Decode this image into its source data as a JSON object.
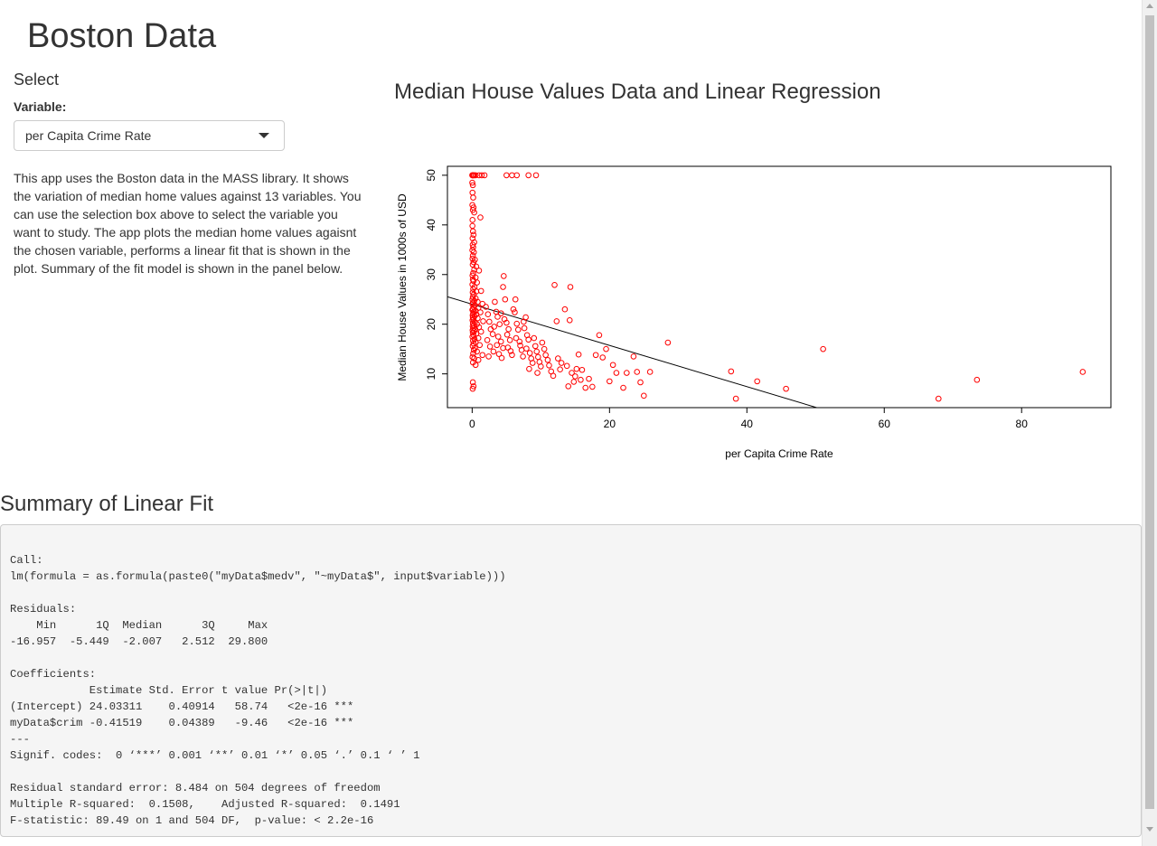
{
  "app": {
    "title": "Boston Data"
  },
  "sidebar": {
    "heading": "Select",
    "select_label": "Variable:",
    "select_value": "per Capita Crime Rate",
    "description": "This app uses the Boston data in the MASS library. It shows the variation of median home values against 13 variables. You can use the selection box above to select the variable you want to study. The app plots the median home values agaisnt the chosen variable, performs a linear fit that is shown in the plot. Summary of the fit model is shown in the panel below."
  },
  "main": {
    "plot_title": "Median House Values Data and Linear Regression"
  },
  "chart_data": {
    "type": "scatter",
    "xlabel": "per Capita Crime Rate",
    "ylabel": "Median House Values in 1000s of USD",
    "xlim": [
      -3.6,
      93
    ],
    "ylim": [
      3.2,
      51.8
    ],
    "xticks": [
      0,
      20,
      40,
      60,
      80
    ],
    "yticks": [
      10,
      20,
      30,
      40,
      50
    ],
    "point_color": "#ff0000",
    "line_color": "#000000",
    "grid": false,
    "regression": {
      "intercept": 24.03311,
      "slope": -0.41519
    },
    "points": [
      [
        0.01,
        50
      ],
      [
        0.05,
        50
      ],
      [
        0.1,
        50
      ],
      [
        0.2,
        50
      ],
      [
        0.3,
        50
      ],
      [
        0.5,
        50
      ],
      [
        1.0,
        50
      ],
      [
        1.4,
        50
      ],
      [
        1.8,
        50
      ],
      [
        5.0,
        50
      ],
      [
        5.8,
        50
      ],
      [
        6.5,
        50
      ],
      [
        8.2,
        50
      ],
      [
        9.3,
        50
      ],
      [
        0.02,
        48.5
      ],
      [
        0.1,
        48
      ],
      [
        0.05,
        46.5
      ],
      [
        0.15,
        45.5
      ],
      [
        0.03,
        44
      ],
      [
        0.2,
        43.5
      ],
      [
        0.1,
        43
      ],
      [
        0.3,
        42.5
      ],
      [
        1.2,
        41.5
      ],
      [
        0.05,
        41
      ],
      [
        0.04,
        39.8
      ],
      [
        0.12,
        38.7
      ],
      [
        0.2,
        38
      ],
      [
        0.06,
        37.3
      ],
      [
        0.3,
        36.5
      ],
      [
        0.08,
        36
      ],
      [
        0.15,
        35.5
      ],
      [
        0.03,
        34.9
      ],
      [
        0.25,
        34.5
      ],
      [
        0.1,
        33.8
      ],
      [
        0.05,
        33.2
      ],
      [
        0.4,
        33
      ],
      [
        0.2,
        32.5
      ],
      [
        0.08,
        32
      ],
      [
        0.6,
        31.6
      ],
      [
        0.3,
        31
      ],
      [
        1.0,
        30.8
      ],
      [
        0.15,
        30.3
      ],
      [
        0.05,
        29.8
      ],
      [
        0.5,
        29.4
      ],
      [
        0.1,
        29
      ],
      [
        0.2,
        28.7
      ],
      [
        0.7,
        28.4
      ],
      [
        0.04,
        28
      ],
      [
        0.35,
        27.5
      ],
      [
        0.15,
        27.1
      ],
      [
        0.6,
        26.6
      ],
      [
        0.08,
        26.4
      ],
      [
        1.3,
        26.7
      ],
      [
        0.25,
        26
      ],
      [
        0.1,
        25.5
      ],
      [
        0.5,
        25.2
      ],
      [
        0.04,
        25
      ],
      [
        0.3,
        24.7
      ],
      [
        0.8,
        24.5
      ],
      [
        0.12,
        24.3
      ],
      [
        1.5,
        24.1
      ],
      [
        0.06,
        24
      ],
      [
        0.4,
        23.8
      ],
      [
        0.2,
        23.5
      ],
      [
        0.9,
        23.3
      ],
      [
        0.1,
        23.1
      ],
      [
        0.03,
        22.9
      ],
      [
        0.5,
        22.7
      ],
      [
        0.25,
        22.5
      ],
      [
        1.2,
        22.4
      ],
      [
        0.15,
        22.2
      ],
      [
        0.6,
        22
      ],
      [
        0.07,
        21.8
      ],
      [
        0.35,
        21.6
      ],
      [
        0.1,
        21.4
      ],
      [
        0.8,
        21.2
      ],
      [
        0.2,
        21
      ],
      [
        0.05,
        20.8
      ],
      [
        1.6,
        20.6
      ],
      [
        0.4,
        20.4
      ],
      [
        0.12,
        20.2
      ],
      [
        0.7,
        20
      ],
      [
        0.25,
        19.8
      ],
      [
        0.08,
        19.6
      ],
      [
        1.0,
        19.4
      ],
      [
        0.15,
        19.2
      ],
      [
        0.45,
        19
      ],
      [
        0.06,
        18.8
      ],
      [
        0.3,
        18.6
      ],
      [
        1.3,
        18.5
      ],
      [
        0.1,
        18.3
      ],
      [
        0.6,
        18.1
      ],
      [
        0.2,
        17.8
      ],
      [
        0.04,
        17.5
      ],
      [
        0.9,
        17.2
      ],
      [
        0.35,
        17
      ],
      [
        0.12,
        16.7
      ],
      [
        0.5,
        16.4
      ],
      [
        0.2,
        16.1
      ],
      [
        1.1,
        15.8
      ],
      [
        0.08,
        15.6
      ],
      [
        0.4,
        15.2
      ],
      [
        0.25,
        14.8
      ],
      [
        0.7,
        14.5
      ],
      [
        0.15,
        14.1
      ],
      [
        1.5,
        13.8
      ],
      [
        0.05,
        13.4
      ],
      [
        0.3,
        13.1
      ],
      [
        0.9,
        12.8
      ],
      [
        0.12,
        12.3
      ],
      [
        0.5,
        11.8
      ],
      [
        0.1,
        8.3
      ],
      [
        0.2,
        7.5
      ],
      [
        0.08,
        7.0
      ],
      [
        2.0,
        23.5
      ],
      [
        2.3,
        22
      ],
      [
        2.5,
        20.5
      ],
      [
        2.7,
        19
      ],
      [
        3.0,
        18
      ],
      [
        2.2,
        16.8
      ],
      [
        2.6,
        15.5
      ],
      [
        3.1,
        14.5
      ],
      [
        2.4,
        13.5
      ],
      [
        3.3,
        24.5
      ],
      [
        3.5,
        22.5
      ],
      [
        3.7,
        21.5
      ],
      [
        4.0,
        20
      ],
      [
        3.2,
        19.5
      ],
      [
        3.8,
        17.5
      ],
      [
        4.2,
        16.5
      ],
      [
        3.6,
        15.8
      ],
      [
        4.5,
        15.2
      ],
      [
        3.9,
        14
      ],
      [
        4.3,
        13.2
      ],
      [
        4.6,
        29.7
      ],
      [
        4.5,
        27.5
      ],
      [
        4.8,
        25
      ],
      [
        4.2,
        22.2
      ],
      [
        4.7,
        21
      ],
      [
        5.0,
        20.3
      ],
      [
        5.3,
        19
      ],
      [
        5.1,
        17.9
      ],
      [
        5.5,
        16.8
      ],
      [
        5.2,
        15.3
      ],
      [
        5.6,
        14.6
      ],
      [
        5.8,
        13.8
      ],
      [
        6.0,
        23
      ],
      [
        6.2,
        22.4
      ],
      [
        6.3,
        25
      ],
      [
        6.5,
        20.1
      ],
      [
        6.7,
        18.9
      ],
      [
        6.4,
        17.2
      ],
      [
        6.9,
        16.5
      ],
      [
        7.0,
        15.7
      ],
      [
        7.2,
        14.8
      ],
      [
        7.4,
        13.5
      ],
      [
        7.5,
        20.5
      ],
      [
        7.8,
        21.4
      ],
      [
        7.6,
        19.2
      ],
      [
        8.0,
        17.8
      ],
      [
        8.2,
        16.9
      ],
      [
        7.9,
        15.1
      ],
      [
        8.4,
        14.2
      ],
      [
        8.6,
        13.1
      ],
      [
        8.8,
        12.2
      ],
      [
        8.3,
        11
      ],
      [
        9.0,
        17.2
      ],
      [
        9.2,
        15.6
      ],
      [
        9.4,
        14.5
      ],
      [
        9.6,
        13.4
      ],
      [
        9.8,
        12.4
      ],
      [
        10.0,
        11.5
      ],
      [
        9.5,
        10.2
      ],
      [
        10.2,
        16.3
      ],
      [
        10.5,
        15
      ],
      [
        10.7,
        13.8
      ],
      [
        11.0,
        12.8
      ],
      [
        11.2,
        11.7
      ],
      [
        11.5,
        10.5
      ],
      [
        11.8,
        9.6
      ],
      [
        12.0,
        27.9
      ],
      [
        12.3,
        20.6
      ],
      [
        12.5,
        13.1
      ],
      [
        12.8,
        10.9
      ],
      [
        13.0,
        12.2
      ],
      [
        13.5,
        23
      ],
      [
        13.8,
        11.6
      ],
      [
        14.0,
        7.5
      ],
      [
        14.2,
        20.8
      ],
      [
        14.3,
        27.5
      ],
      [
        14.5,
        10.2
      ],
      [
        14.8,
        8.4
      ],
      [
        15.0,
        9.5
      ],
      [
        15.2,
        11
      ],
      [
        15.5,
        13.9
      ],
      [
        15.8,
        8.8
      ],
      [
        16.0,
        10.8
      ],
      [
        16.5,
        7.2
      ],
      [
        17.0,
        9
      ],
      [
        17.5,
        7.4
      ],
      [
        18.0,
        13.8
      ],
      [
        18.5,
        17.8
      ],
      [
        19.0,
        13.3
      ],
      [
        19.5,
        15
      ],
      [
        20.0,
        8.5
      ],
      [
        20.5,
        11.8
      ],
      [
        21.0,
        10.2
      ],
      [
        22.0,
        7.2
      ],
      [
        22.5,
        10.2
      ],
      [
        23.5,
        13.5
      ],
      [
        24.0,
        10.4
      ],
      [
        24.5,
        8.3
      ],
      [
        25.0,
        5.6
      ],
      [
        25.9,
        10.4
      ],
      [
        28.5,
        16.3
      ],
      [
        37.7,
        10.5
      ],
      [
        38.4,
        5.0
      ],
      [
        41.5,
        8.5
      ],
      [
        45.7,
        7.0
      ],
      [
        51.1,
        15.0
      ],
      [
        67.9,
        5.0
      ],
      [
        73.5,
        8.8
      ],
      [
        88.9,
        10.4
      ]
    ]
  },
  "summary": {
    "title": "Summary of Linear Fit",
    "lines": [
      "Call:",
      "lm(formula = as.formula(paste0(\"myData$medv\", \"~myData$\", input$variable)))",
      "",
      "Residuals:",
      "    Min      1Q  Median      3Q     Max ",
      "-16.957  -5.449  -2.007   2.512  29.800 ",
      "",
      "Coefficients:",
      "            Estimate Std. Error t value Pr(>|t|)    ",
      "(Intercept) 24.03311    0.40914   58.74   <2e-16 ***",
      "myData$crim -0.41519    0.04389   -9.46   <2e-16 ***",
      "---",
      "Signif. codes:  0 ‘***’ 0.001 ‘**’ 0.01 ‘*’ 0.05 ‘.’ 0.1 ‘ ’ 1",
      "",
      "Residual standard error: 8.484 on 504 degrees of freedom",
      "Multiple R-squared:  0.1508,\tAdjusted R-squared:  0.1491 ",
      "F-statistic: 89.49 on 1 and 504 DF,  p-value: < 2.2e-16"
    ]
  }
}
